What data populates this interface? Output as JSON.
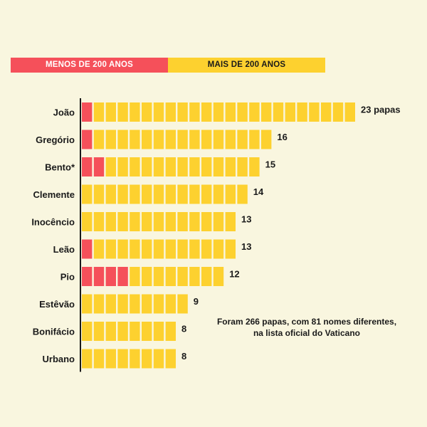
{
  "colors": {
    "background": "#f9f6df",
    "recent": "#f5505a",
    "old": "#fdd12f",
    "text": "#1a1a1a",
    "axis": "#1a1a1a"
  },
  "legend": {
    "recent_label": "MENOS DE 200 ANOS",
    "old_label": "MAIS DE 200 ANOS"
  },
  "note": "Foram 266 papas, com 81 nomes diferentes, na lista oficial do Vaticano",
  "chart_data": {
    "type": "bar",
    "orientation": "horizontal",
    "unit_display": "each block = 1 pope",
    "series_labels": [
      "MENOS DE 200 ANOS",
      "MAIS DE 200 ANOS"
    ],
    "categories": [
      "João",
      "Gregório",
      "Bento*",
      "Clemente",
      "Inocêncio",
      "Leão",
      "Pio",
      "Estêvão",
      "Bonifácio",
      "Urbano"
    ],
    "totals": [
      23,
      16,
      15,
      14,
      13,
      13,
      12,
      9,
      8,
      8
    ],
    "recent": [
      1,
      1,
      2,
      0,
      0,
      1,
      4,
      0,
      0,
      0
    ],
    "value_labels": [
      "23 papas",
      "16",
      "15",
      "14",
      "13",
      "13",
      "12",
      "9",
      "8",
      "8"
    ],
    "grid": false,
    "legend_position": "top-left"
  }
}
